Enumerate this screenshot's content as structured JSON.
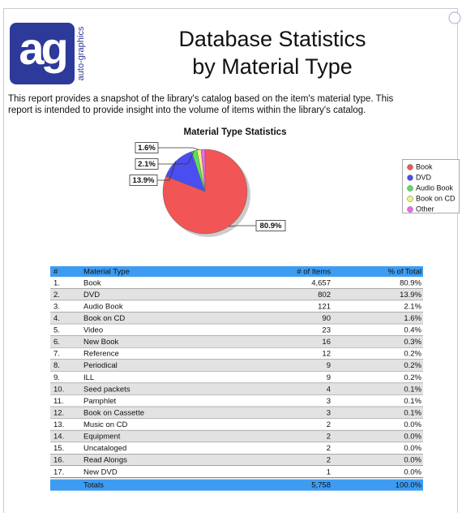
{
  "logo": {
    "mark": "ag",
    "name": "auto-graphics"
  },
  "title": [
    "Database Statistics",
    "by Material Type"
  ],
  "description": [
    "This report provides a snapshot of the library's catalog based on the item's material type.  This",
    "report is intended to provide insight into the volume of items within the library's catalog."
  ],
  "chart_data": {
    "type": "pie",
    "title": "Material Type Statistics",
    "categories": [
      "Book",
      "DVD",
      "Audio Book",
      "Book on CD",
      "Other"
    ],
    "values": [
      80.9,
      13.9,
      2.1,
      1.6,
      1.5
    ],
    "value_labels": [
      "80.9%",
      "13.9%",
      "2.1%",
      "1.6%",
      null
    ],
    "colors": [
      "#f25555",
      "#4a4ef0",
      "#5fdc5f",
      "#f2f27a",
      "#ee66ee"
    ],
    "legend": "right"
  },
  "table": {
    "columns": [
      "#",
      "Material Type",
      "# of Items",
      "% of Total"
    ],
    "rows": [
      [
        "1.",
        "Book",
        "4,657",
        "80.9%"
      ],
      [
        "2.",
        "DVD",
        "802",
        "13.9%"
      ],
      [
        "3.",
        "Audio Book",
        "121",
        "2.1%"
      ],
      [
        "4.",
        "Book on CD",
        "90",
        "1.6%"
      ],
      [
        "5.",
        "Video",
        "23",
        "0.4%"
      ],
      [
        "6.",
        "New Book",
        "16",
        "0.3%"
      ],
      [
        "7.",
        "Reference",
        "12",
        "0.2%"
      ],
      [
        "8.",
        "Periodical",
        "9",
        "0.2%"
      ],
      [
        "9.",
        "ILL",
        "9",
        "0.2%"
      ],
      [
        "10.",
        "Seed packets",
        "4",
        "0.1%"
      ],
      [
        "11.",
        "Pamphlet",
        "3",
        "0.1%"
      ],
      [
        "12.",
        "Book on Cassette",
        "3",
        "0.1%"
      ],
      [
        "13.",
        "Music on CD",
        "2",
        "0.0%"
      ],
      [
        "14.",
        "Equipment",
        "2",
        "0.0%"
      ],
      [
        "15.",
        "Uncataloged",
        "2",
        "0.0%"
      ],
      [
        "16.",
        "Read Alongs",
        "2",
        "0.0%"
      ],
      [
        "17.",
        "New DVD",
        "1",
        "0.0%"
      ]
    ],
    "totals": [
      "Totals",
      "5,758",
      "100.0%"
    ]
  }
}
